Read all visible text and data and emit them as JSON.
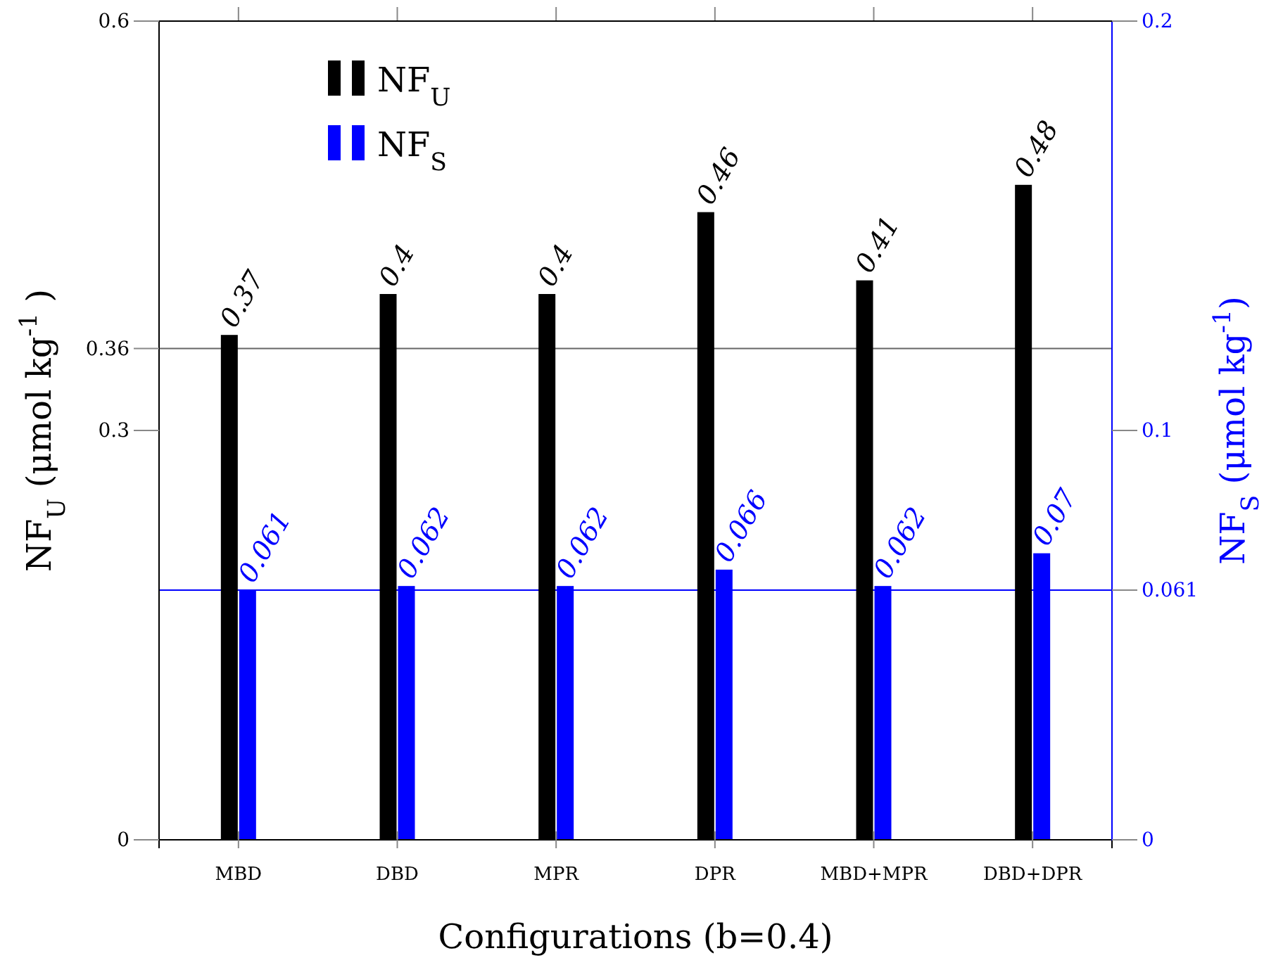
{
  "chart_data": {
    "type": "bar",
    "xlabel": "Configurations (b=0.4)",
    "ylabel": "NF$_{U}$ (μmol kg$^{-1}$ )",
    "y2label": "NF$_{S}$ (μmol kg$^{-1}$)",
    "categories": [
      "MBD",
      "DBD",
      "MPR",
      "DPR",
      "MBD+MPR",
      "DBD+DPR"
    ],
    "series": [
      {
        "name": "NF$_{U}$",
        "color": "#000000",
        "values": [
          0.37,
          0.4,
          0.4,
          0.46,
          0.41,
          0.48
        ]
      },
      {
        "name": "NF$_{S}$",
        "color": "#0000ff",
        "axis": "y2",
        "values": [
          0.061,
          0.062,
          0.062,
          0.066,
          0.062,
          0.07
        ]
      }
    ],
    "ylim": [
      0,
      0.6
    ],
    "yticks": [
      0,
      0.3,
      0.36,
      0.6
    ],
    "y2lim": [
      0,
      0.2
    ],
    "y2ticks": [
      0,
      0.061,
      0.1,
      0.2
    ],
    "ref_lines": [
      {
        "axis": "y",
        "value": 0.36,
        "color": "#666666"
      },
      {
        "axis": "y2",
        "value": 0.061,
        "color": "#0000ff"
      }
    ],
    "data_labels": true,
    "legend": "top left",
    "grid": false
  }
}
